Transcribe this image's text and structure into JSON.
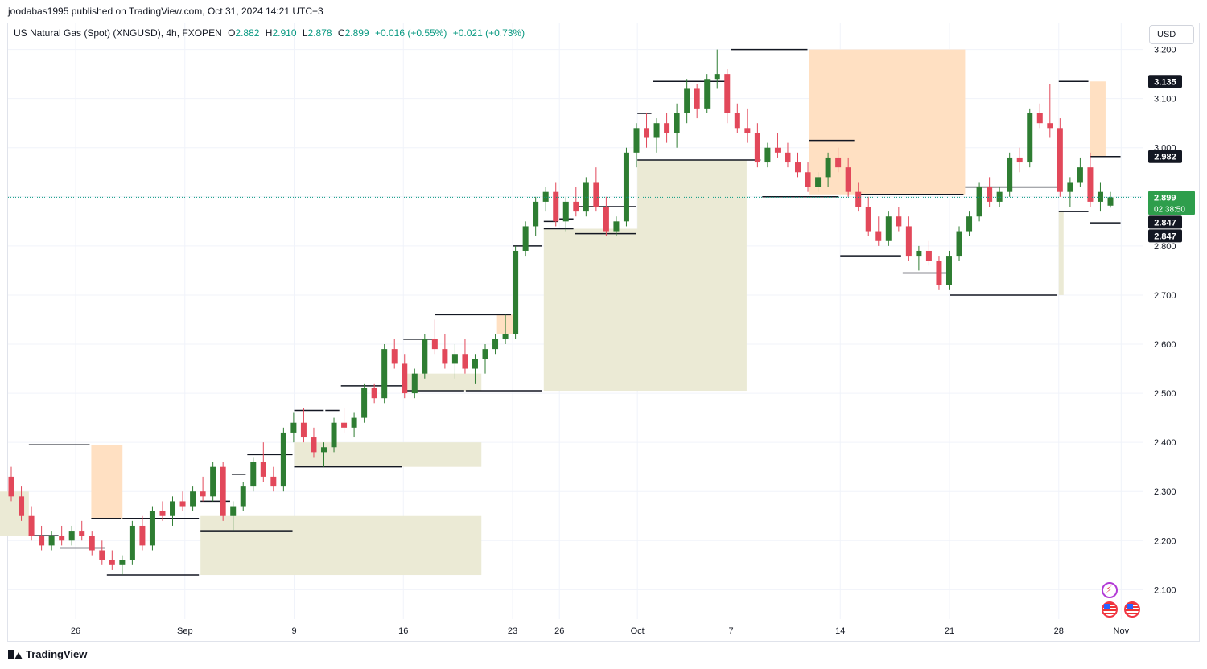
{
  "header": {
    "publisher_line": "joodabas1995 published on TradingView.com, Oct 31, 2024 14:21 UTC+3"
  },
  "legend": {
    "symbol": "US Natural Gas (Spot) (XNGUSD), 4h, FXOPEN",
    "open_label": "O",
    "open": "2.882",
    "high_label": "H",
    "high": "2.910",
    "low_label": "L",
    "low": "2.878",
    "close_label": "C",
    "close": "2.899",
    "change": "+0.016 (+0.55%)",
    "change2": "+0.021 (+0.73%)"
  },
  "currency": "USD",
  "footer": {
    "brand": "TradingView"
  },
  "colors": {
    "up": "#2e7d32",
    "down": "#e2485a",
    "grid": "#f0f3fa",
    "upper_zone_fill": "#ffe0c2",
    "lower_zone_fill": "#ebead5",
    "level_line": "#131722",
    "price_line": "#089981"
  },
  "chart_data": {
    "type": "candlestick",
    "y_ticks": [
      "3.200",
      "3.100",
      "3.000",
      "2.900",
      "2.800",
      "2.700",
      "2.600",
      "2.500",
      "2.400",
      "2.300",
      "2.200",
      "2.100"
    ],
    "ylim": [
      2.04,
      3.255
    ],
    "x_ticks": [
      {
        "label": "26",
        "date": "2024-08-26"
      },
      {
        "label": "Sep",
        "date": "2024-09-02"
      },
      {
        "label": "9",
        "date": "2024-09-09"
      },
      {
        "label": "16",
        "date": "2024-09-16"
      },
      {
        "label": "23",
        "date": "2024-09-23"
      },
      {
        "label": "26",
        "date": "2024-09-26"
      },
      {
        "label": "Oct",
        "date": "2024-10-01"
      },
      {
        "label": "7",
        "date": "2024-10-07"
      },
      {
        "label": "14",
        "date": "2024-10-14"
      },
      {
        "label": "21",
        "date": "2024-10-21"
      },
      {
        "label": "28",
        "date": "2024-10-28"
      },
      {
        "label": "Nov",
        "date": "2024-11-01"
      }
    ],
    "grid": true,
    "current_price": {
      "value": 2.899,
      "label": "2.899",
      "countdown": "02:38:50"
    },
    "price_badges": [
      {
        "label": "3.135",
        "value": 3.135
      },
      {
        "label": "2.982",
        "value": 2.982
      },
      {
        "label": "2.847",
        "value": 2.847
      },
      {
        "label": "2.847",
        "value": 2.847
      }
    ],
    "upper_levels": [
      {
        "date": "2024-08-23",
        "price": 2.395
      },
      {
        "date": "2024-08-27",
        "price": 2.245
      },
      {
        "date": "2024-08-29",
        "price": 2.245
      },
      {
        "date": "2024-09-03",
        "price": 2.28
      },
      {
        "date": "2024-09-05",
        "price": 2.335
      },
      {
        "date": "2024-09-06",
        "price": 2.375
      },
      {
        "date": "2024-09-09",
        "price": 2.465
      },
      {
        "date": "2024-09-11",
        "price": 2.465
      },
      {
        "date": "2024-09-12",
        "price": 2.515
      },
      {
        "date": "2024-09-16",
        "price": 2.61
      },
      {
        "date": "2024-09-18",
        "price": 2.66
      },
      {
        "date": "2024-09-23",
        "price": 2.8
      },
      {
        "date": "2024-09-25",
        "price": 2.85
      },
      {
        "date": "2024-09-26",
        "price": 2.855
      },
      {
        "date": "2024-09-27",
        "price": 2.88
      },
      {
        "date": "2024-10-01",
        "price": 3.07
      },
      {
        "date": "2024-10-02",
        "price": 3.135
      },
      {
        "date": "2024-10-07",
        "price": 3.2
      },
      {
        "date": "2024-10-12",
        "price": 3.015
      },
      {
        "date": "2024-10-15",
        "price": 2.905
      },
      {
        "date": "2024-10-22",
        "price": 2.92
      },
      {
        "date": "2024-10-28",
        "price": 3.135
      },
      {
        "date": "2024-10-30",
        "price": 2.982
      }
    ],
    "lower_levels": [
      {
        "date": "2024-08-23",
        "price": 2.21
      },
      {
        "date": "2024-08-25",
        "price": 2.185
      },
      {
        "date": "2024-08-28",
        "price": 2.13
      },
      {
        "date": "2024-09-03",
        "price": 2.22
      },
      {
        "date": "2024-09-09",
        "price": 2.35
      },
      {
        "date": "2024-09-16",
        "price": 2.505
      },
      {
        "date": "2024-09-20",
        "price": 2.505
      },
      {
        "date": "2024-09-25",
        "price": 2.835
      },
      {
        "date": "2024-09-27",
        "price": 2.825
      },
      {
        "date": "2024-10-01",
        "price": 2.975
      },
      {
        "date": "2024-10-09",
        "price": 2.9
      },
      {
        "date": "2024-10-14",
        "price": 2.78
      },
      {
        "date": "2024-10-18",
        "price": 2.745
      },
      {
        "date": "2024-10-21",
        "price": 2.7
      },
      {
        "date": "2024-10-28",
        "price": 2.87
      },
      {
        "date": "2024-10-30",
        "price": 2.847
      }
    ],
    "candles": [
      [
        2.33,
        2.35,
        2.28,
        2.29
      ],
      [
        2.29,
        2.31,
        2.24,
        2.25
      ],
      [
        2.25,
        2.27,
        2.2,
        2.21
      ],
      [
        2.21,
        2.23,
        2.18,
        2.19
      ],
      [
        2.19,
        2.22,
        2.18,
        2.21
      ],
      [
        2.21,
        2.23,
        2.19,
        2.2
      ],
      [
        2.2,
        2.23,
        2.19,
        2.22
      ],
      [
        2.22,
        2.24,
        2.2,
        2.21
      ],
      [
        2.21,
        2.22,
        2.17,
        2.18
      ],
      [
        2.18,
        2.2,
        2.15,
        2.16
      ],
      [
        2.16,
        2.18,
        2.14,
        2.15
      ],
      [
        2.15,
        2.17,
        2.13,
        2.16
      ],
      [
        2.16,
        2.24,
        2.15,
        2.23
      ],
      [
        2.23,
        2.25,
        2.18,
        2.19
      ],
      [
        2.19,
        2.27,
        2.18,
        2.26
      ],
      [
        2.26,
        2.28,
        2.24,
        2.25
      ],
      [
        2.25,
        2.29,
        2.23,
        2.28
      ],
      [
        2.28,
        2.3,
        2.26,
        2.27
      ],
      [
        2.27,
        2.31,
        2.26,
        2.3
      ],
      [
        2.3,
        2.33,
        2.28,
        2.29
      ],
      [
        2.29,
        2.36,
        2.28,
        2.35
      ],
      [
        2.35,
        2.36,
        2.24,
        2.25
      ],
      [
        2.25,
        2.28,
        2.22,
        2.27
      ],
      [
        2.27,
        2.32,
        2.26,
        2.31
      ],
      [
        2.31,
        2.37,
        2.3,
        2.36
      ],
      [
        2.36,
        2.4,
        2.32,
        2.33
      ],
      [
        2.33,
        2.35,
        2.3,
        2.31
      ],
      [
        2.31,
        2.43,
        2.3,
        2.42
      ],
      [
        2.42,
        2.46,
        2.4,
        2.44
      ],
      [
        2.44,
        2.47,
        2.4,
        2.41
      ],
      [
        2.41,
        2.43,
        2.37,
        2.38
      ],
      [
        2.38,
        2.4,
        2.35,
        2.39
      ],
      [
        2.39,
        2.45,
        2.38,
        2.44
      ],
      [
        2.44,
        2.47,
        2.42,
        2.43
      ],
      [
        2.43,
        2.46,
        2.41,
        2.45
      ],
      [
        2.45,
        2.52,
        2.44,
        2.51
      ],
      [
        2.51,
        2.52,
        2.48,
        2.49
      ],
      [
        2.49,
        2.6,
        2.48,
        2.59
      ],
      [
        2.59,
        2.61,
        2.55,
        2.56
      ],
      [
        2.56,
        2.58,
        2.49,
        2.5
      ],
      [
        2.5,
        2.55,
        2.49,
        2.54
      ],
      [
        2.54,
        2.62,
        2.53,
        2.61
      ],
      [
        2.61,
        2.65,
        2.58,
        2.59
      ],
      [
        2.59,
        2.62,
        2.55,
        2.56
      ],
      [
        2.56,
        2.6,
        2.53,
        2.58
      ],
      [
        2.58,
        2.61,
        2.54,
        2.55
      ],
      [
        2.55,
        2.58,
        2.52,
        2.57
      ],
      [
        2.57,
        2.6,
        2.54,
        2.59
      ],
      [
        2.59,
        2.62,
        2.58,
        2.61
      ],
      [
        2.61,
        2.66,
        2.6,
        2.62
      ],
      [
        2.62,
        2.8,
        2.61,
        2.79
      ],
      [
        2.79,
        2.85,
        2.78,
        2.84
      ],
      [
        2.84,
        2.9,
        2.82,
        2.89
      ],
      [
        2.89,
        2.92,
        2.87,
        2.91
      ],
      [
        2.91,
        2.93,
        2.84,
        2.85
      ],
      [
        2.85,
        2.9,
        2.83,
        2.89
      ],
      [
        2.89,
        2.92,
        2.86,
        2.87
      ],
      [
        2.87,
        2.94,
        2.86,
        2.93
      ],
      [
        2.93,
        2.96,
        2.87,
        2.88
      ],
      [
        2.88,
        2.9,
        2.82,
        2.83
      ],
      [
        2.83,
        2.86,
        2.82,
        2.85
      ],
      [
        2.85,
        3.0,
        2.84,
        2.99
      ],
      [
        2.99,
        3.05,
        2.96,
        3.04
      ],
      [
        3.04,
        3.07,
        3.0,
        3.02
      ],
      [
        3.02,
        3.06,
        2.99,
        3.05
      ],
      [
        3.05,
        3.07,
        3.01,
        3.03
      ],
      [
        3.03,
        3.09,
        3.0,
        3.07
      ],
      [
        3.07,
        3.14,
        3.05,
        3.12
      ],
      [
        3.12,
        3.13,
        3.06,
        3.08
      ],
      [
        3.08,
        3.15,
        3.07,
        3.14
      ],
      [
        3.14,
        3.2,
        3.12,
        3.15
      ],
      [
        3.15,
        3.16,
        3.05,
        3.07
      ],
      [
        3.07,
        3.09,
        3.03,
        3.04
      ],
      [
        3.04,
        3.08,
        3.01,
        3.03
      ],
      [
        3.03,
        3.05,
        2.96,
        2.97
      ],
      [
        2.97,
        3.01,
        2.96,
        3.0
      ],
      [
        3.0,
        3.03,
        2.98,
        2.99
      ],
      [
        2.99,
        3.01,
        2.96,
        2.97
      ],
      [
        2.97,
        2.99,
        2.94,
        2.95
      ],
      [
        2.95,
        2.97,
        2.91,
        2.92
      ],
      [
        2.92,
        2.95,
        2.91,
        2.94
      ],
      [
        2.94,
        2.99,
        2.92,
        2.98
      ],
      [
        2.98,
        3.0,
        2.95,
        2.96
      ],
      [
        2.96,
        2.98,
        2.9,
        2.91
      ],
      [
        2.91,
        2.93,
        2.87,
        2.88
      ],
      [
        2.88,
        2.9,
        2.82,
        2.83
      ],
      [
        2.83,
        2.86,
        2.8,
        2.81
      ],
      [
        2.81,
        2.87,
        2.8,
        2.86
      ],
      [
        2.86,
        2.88,
        2.83,
        2.84
      ],
      [
        2.84,
        2.86,
        2.77,
        2.78
      ],
      [
        2.78,
        2.8,
        2.75,
        2.79
      ],
      [
        2.79,
        2.81,
        2.76,
        2.77
      ],
      [
        2.77,
        2.78,
        2.71,
        2.72
      ],
      [
        2.72,
        2.79,
        2.71,
        2.78
      ],
      [
        2.78,
        2.84,
        2.77,
        2.83
      ],
      [
        2.83,
        2.87,
        2.82,
        2.86
      ],
      [
        2.86,
        2.93,
        2.85,
        2.92
      ],
      [
        2.92,
        2.94,
        2.88,
        2.89
      ],
      [
        2.89,
        2.92,
        2.88,
        2.91
      ],
      [
        2.91,
        2.99,
        2.9,
        2.98
      ],
      [
        2.98,
        3.0,
        2.95,
        2.97
      ],
      [
        2.97,
        3.08,
        2.96,
        3.07
      ],
      [
        3.07,
        3.09,
        3.04,
        3.05
      ],
      [
        3.05,
        3.13,
        3.02,
        3.04
      ],
      [
        3.04,
        3.06,
        2.9,
        2.91
      ],
      [
        2.91,
        2.94,
        2.88,
        2.93
      ],
      [
        2.93,
        2.98,
        2.92,
        2.96
      ],
      [
        2.96,
        2.99,
        2.88,
        2.89
      ],
      [
        2.89,
        2.93,
        2.87,
        2.91
      ],
      [
        2.882,
        2.91,
        2.878,
        2.899
      ]
    ]
  }
}
